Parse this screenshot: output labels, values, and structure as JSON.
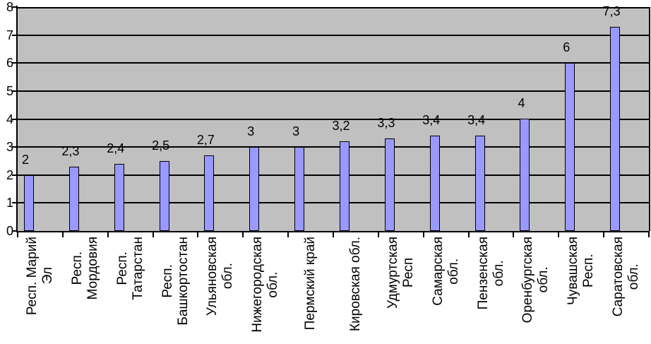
{
  "chart_data": {
    "type": "bar",
    "title": "",
    "xlabel": "",
    "ylabel": "",
    "categories": [
      "Респ. Марий Эл",
      "Респ. Мордовия",
      "Респ. Татарстан",
      "Респ. Башкортостан",
      "Ульяновская обл.",
      "Нижегородская обл.",
      "Пермский край",
      "Кировская обл.",
      "Удмуртская Респ",
      "Самарская обл.",
      "Пензенская обл.",
      "Оренбургская обл.",
      "Чувашская Респ.",
      "Саратовская обл."
    ],
    "category_label_lines": [
      [
        "Респ. Марий",
        "Эл"
      ],
      [
        "Респ.",
        "Мордовия"
      ],
      [
        "Респ.",
        "Татарстан"
      ],
      [
        "Респ.",
        "Башкортостан"
      ],
      [
        "Ульяновская",
        "обл."
      ],
      [
        "Нижегородская",
        "обл."
      ],
      [
        "Пермский край"
      ],
      [
        "Кировская обл."
      ],
      [
        "Удмуртская",
        "Респ"
      ],
      [
        "Самарская",
        "обл."
      ],
      [
        "Пензенская",
        "обл."
      ],
      [
        "Оренбургская",
        "обл."
      ],
      [
        "Чувашская",
        "Респ."
      ],
      [
        "Саратовская",
        "обл."
      ]
    ],
    "values": [
      2,
      2.3,
      2.4,
      2.5,
      2.7,
      3,
      3,
      3.2,
      3.3,
      3.4,
      3.4,
      4,
      6,
      7.3
    ],
    "value_labels": [
      "2",
      "2,3",
      "2,4",
      "2,5",
      "2,7",
      "3",
      "3",
      "3,2",
      "3,3",
      "3,4",
      "3,4",
      "4",
      "6",
      "7,3"
    ],
    "ylim": [
      0,
      8
    ],
    "ytick_labels": [
      "0",
      "1",
      "2",
      "3",
      "4",
      "5",
      "6",
      "7",
      "8"
    ],
    "grid": "horizontal",
    "legend_position": "none",
    "colors": {
      "bar_fill": "#9999FF",
      "bar_border": "#000000",
      "plot_background": "#C0C0C0",
      "gridline": "#000000",
      "axis": "#000000",
      "text": "#000000",
      "page_background": "#FFFFFF"
    }
  }
}
